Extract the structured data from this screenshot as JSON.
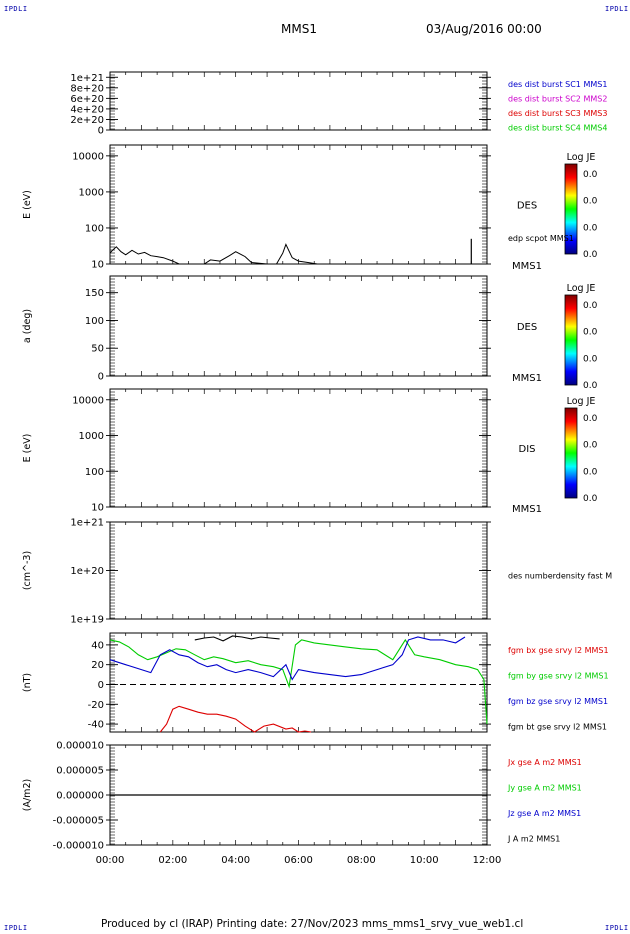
{
  "corners": {
    "tl": "IPDLI",
    "tr": "IPDLI",
    "bl": "IPDLI",
    "br": "IPDLI"
  },
  "header": {
    "spacecraft": "MMS1",
    "date": "03/Aug/2016 00:00"
  },
  "footer": {
    "text": "Produced by cl (IRAP)   Printing date: 27/Nov/2023   mms_mms1_srvy_vue_web1.cl"
  },
  "colors": {
    "blue": "#0000cc",
    "magenta": "#cc00cc",
    "red": "#dd0000",
    "green": "#00cc00",
    "black": "#000000"
  },
  "chart_data": [
    {
      "type": "line",
      "ylabel": "",
      "yticks": [
        "1e+21",
        "8e+20",
        "6e+20",
        "4e+20",
        "2e+20",
        "0"
      ],
      "ylim": [
        0,
        1e+21
      ],
      "reference_line": 0,
      "legend": [
        {
          "text": "des dist burst SC1 MMS1",
          "color": "#0000cc"
        },
        {
          "text": "des dist burst SC2 MMS2",
          "color": "#cc00cc"
        },
        {
          "text": "des dist burst SC3 MMS3",
          "color": "#dd0000"
        },
        {
          "text": "des dist burst SC4 MMS4",
          "color": "#00cc00"
        }
      ]
    },
    {
      "type": "heatmap",
      "ylabel": "E (eV)",
      "yticks": [
        "10000",
        "1000",
        "100",
        "10"
      ],
      "ylim": [
        10,
        20000
      ],
      "yscale": "log",
      "instrument": "DES",
      "bottom_label": "MMS1",
      "overlay_label": "edp scpot MMS1",
      "colorbar": {
        "title": "Log JE",
        "ticks": [
          "0.0",
          "0.0",
          "0.0",
          "0.0"
        ]
      },
      "overlay_series": {
        "name": "edp scpot MMS1",
        "x_hours": [
          0,
          0.1,
          0.2,
          0.35,
          0.5,
          0.7,
          0.9,
          1.1,
          1.3,
          1.5,
          1.7,
          2.0,
          2.2,
          2.5,
          3.0,
          3.2,
          3.5,
          3.8,
          4.0,
          4.3,
          4.5,
          5.0,
          5.3,
          5.5,
          5.6,
          5.8,
          6.0,
          6.3,
          6.6
        ],
        "y_eV": [
          20,
          25,
          30,
          22,
          18,
          24,
          19,
          21,
          17,
          16,
          15,
          12,
          10,
          10,
          10,
          13,
          12,
          17,
          22,
          16,
          11,
          10,
          10,
          20,
          35,
          15,
          12,
          11,
          10
        ],
        "spike": {
          "x_hours": 11.5,
          "y_eV": 50
        }
      }
    },
    {
      "type": "heatmap",
      "ylabel": "a (deg)",
      "yticks": [
        "150",
        "100",
        "50",
        "0"
      ],
      "ylim": [
        0,
        180
      ],
      "instrument": "DES",
      "bottom_label": "MMS1",
      "colorbar": {
        "title": "Log JE",
        "ticks": [
          "0.0",
          "0.0",
          "0.0",
          "0.0"
        ]
      }
    },
    {
      "type": "heatmap",
      "ylabel": "E (eV)",
      "yticks": [
        "10000",
        "1000",
        "100",
        "10"
      ],
      "ylim": [
        10,
        20000
      ],
      "yscale": "log",
      "instrument": "DIS",
      "bottom_label": "MMS1",
      "colorbar": {
        "title": "Log JE",
        "ticks": [
          "0.0",
          "0.0",
          "0.0",
          "0.0"
        ]
      }
    },
    {
      "type": "line",
      "ylabel": "(cm^-3)",
      "yticks": [
        "1e+21",
        "1e+20",
        "1e+19"
      ],
      "ylim": [
        1e+19,
        1e+21
      ],
      "yscale": "log",
      "legend": [
        {
          "text": "des numberdensity fast M",
          "color": "#000000"
        }
      ]
    },
    {
      "type": "line",
      "ylabel": "(nT)",
      "yticks": [
        "40",
        "20",
        "0",
        "-20",
        "-40"
      ],
      "ylim": [
        -48,
        52
      ],
      "reference_line": 0,
      "legend": [
        {
          "text": "fgm bx gse srvy l2 MMS1",
          "color": "#dd0000"
        },
        {
          "text": "fgm by gse srvy l2 MMS1",
          "color": "#00cc00"
        },
        {
          "text": "fgm bz gse srvy l2 MMS1",
          "color": "#0000cc"
        },
        {
          "text": "fgm bt gse srvy l2 MMS1",
          "color": "#000000"
        }
      ],
      "series": [
        {
          "name": "fgm by gse srvy l2 MMS1",
          "color": "#00cc00",
          "x_hours": [
            0,
            0.3,
            0.6,
            0.9,
            1.2,
            1.5,
            1.8,
            2.1,
            2.4,
            2.7,
            3.0,
            3.3,
            3.6,
            4.0,
            4.4,
            4.8,
            5.2,
            5.5,
            5.7,
            5.9,
            6.1,
            6.5,
            7.0,
            7.5,
            8.0,
            8.5,
            9.0,
            9.4,
            9.7,
            10.0,
            10.5,
            11.0,
            11.4,
            11.7,
            11.9,
            12.0
          ],
          "values": [
            45,
            43,
            38,
            30,
            25,
            28,
            32,
            36,
            35,
            30,
            25,
            28,
            26,
            22,
            24,
            20,
            18,
            15,
            -2,
            40,
            45,
            42,
            40,
            38,
            36,
            35,
            25,
            45,
            30,
            28,
            25,
            20,
            18,
            15,
            5,
            -40
          ]
        },
        {
          "name": "fgm bz gse srvy l2 MMS1",
          "color": "#0000cc",
          "x_hours": [
            0,
            0.5,
            1.0,
            1.3,
            1.6,
            1.9,
            2.2,
            2.5,
            2.8,
            3.1,
            3.4,
            3.7,
            4.0,
            4.4,
            4.8,
            5.2,
            5.6,
            5.8,
            6.0,
            6.5,
            7.0,
            7.5,
            8.0,
            8.5,
            9.0,
            9.3,
            9.5,
            9.8,
            10.2,
            10.6,
            11.0,
            11.3
          ],
          "values": [
            25,
            20,
            15,
            12,
            30,
            35,
            30,
            28,
            22,
            18,
            20,
            15,
            12,
            15,
            12,
            8,
            20,
            5,
            15,
            12,
            10,
            8,
            10,
            15,
            20,
            30,
            45,
            48,
            45,
            45,
            42,
            48
          ]
        },
        {
          "name": "fgm bt gse srvy l2 MMS1",
          "color": "#000000",
          "x_hours": [
            2.7,
            3.0,
            3.3,
            3.6,
            3.9,
            4.2,
            4.5,
            4.8,
            5.1,
            5.4
          ],
          "values": [
            45,
            47,
            48,
            44,
            49,
            48,
            46,
            48,
            47,
            46
          ]
        },
        {
          "name": "fgm bx gse srvy l2 MMS1",
          "color": "#dd0000",
          "x_hours": [
            1.6,
            1.8,
            2.0,
            2.2,
            2.5,
            2.8,
            3.1,
            3.4,
            3.7,
            4.0,
            4.3,
            4.6,
            4.9,
            5.2,
            5.6,
            5.8,
            6.0,
            6.2,
            6.4
          ],
          "values": [
            -48,
            -40,
            -25,
            -22,
            -25,
            -28,
            -30,
            -30,
            -32,
            -35,
            -42,
            -48,
            -42,
            -40,
            -45,
            -44,
            -48,
            -47,
            -48
          ]
        }
      ]
    },
    {
      "type": "line",
      "ylabel": "(A/m2)",
      "yticks": [
        "0.000010",
        "0.000005",
        "0.000000",
        "-0.000005",
        "-0.000010"
      ],
      "ylim": [
        -1e-05,
        1e-05
      ],
      "legend": [
        {
          "text": "Jx gse A m2 MMS1",
          "color": "#dd0000"
        },
        {
          "text": "Jy gse A m2 MMS1",
          "color": "#00cc00"
        },
        {
          "text": "Jz gse A m2 MMS1",
          "color": "#0000cc"
        },
        {
          "text": "J A m2 MMS1",
          "color": "#000000"
        }
      ],
      "series": [
        {
          "name": "J A m2 MMS1",
          "color": "#000000",
          "x_hours": [
            0,
            2,
            4,
            6,
            8,
            10,
            12
          ],
          "values": [
            0,
            0,
            0,
            0,
            0,
            0,
            0
          ]
        }
      ]
    }
  ],
  "xaxis": {
    "ticks": [
      "00:00",
      "02:00",
      "04:00",
      "06:00",
      "08:00",
      "10:00",
      "12:00"
    ],
    "range_hours": [
      0,
      12
    ]
  }
}
